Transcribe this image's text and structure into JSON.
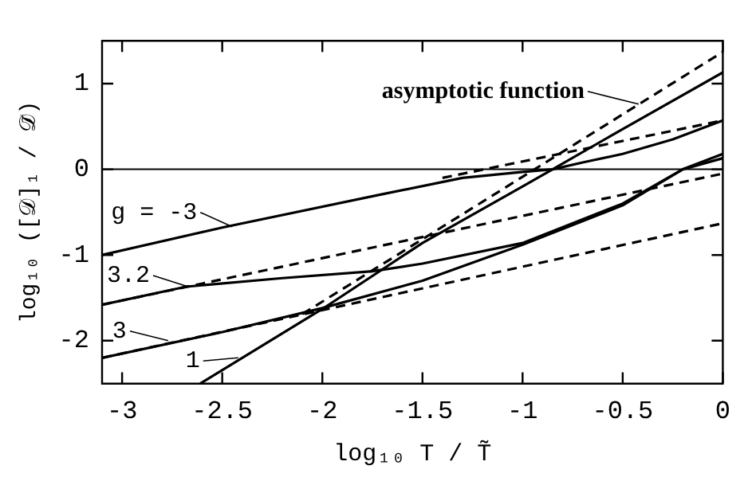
{
  "chart_data": {
    "type": "line",
    "xlabel": "log₁₀ T / T̃",
    "ylabel": "log₁₀ ([𝒟]₁ / 𝒟̃)",
    "xlim": [
      -3.1,
      0
    ],
    "xticks": [
      -3,
      -2.5,
      -2,
      -1.5,
      -1,
      -0.5,
      0
    ],
    "ylim": [
      -2.5,
      1.5
    ],
    "yticks": [
      -2,
      -1,
      0,
      1
    ],
    "grid": false,
    "legend": false,
    "marker": "none",
    "ref_lines": [
      {
        "axis": "y",
        "value": 0,
        "color": "#000000"
      }
    ],
    "series": [
      {
        "color": "#000000",
        "line_style": "solid",
        "x": [
          -3.1,
          -2.5,
          -1.72,
          -1.3,
          -1,
          -0.85,
          -0.7,
          -0.5,
          -0.25,
          0
        ],
        "values": [
          -1,
          -0.68,
          -0.3,
          -0.1,
          -0.03,
          0,
          0.08,
          0.18,
          0.35,
          0.57
        ]
      },
      {
        "color": "#000000",
        "line_style": "dashed",
        "x": [
          -2.1,
          0
        ],
        "values": [
          -1.69,
          1.37
        ]
      },
      {
        "color": "#000000",
        "line_style": "solid",
        "x": [
          -2.61,
          -2,
          -1.5,
          -1,
          -0.85,
          -0.5,
          0
        ],
        "values": [
          -2.5,
          -1.63,
          -0.86,
          -0.2,
          0,
          0.47,
          1.13
        ]
      },
      {
        "color": "#000000",
        "line_style": "dashed",
        "x": [
          -1.4,
          0
        ],
        "values": [
          -0.1,
          0.57
        ]
      },
      {
        "color": "#000000",
        "line_style": "solid",
        "x": [
          -3.1,
          -2.68,
          -2.2,
          -1.75,
          -1.5,
          -1,
          -0.5,
          -0.2,
          0
        ],
        "values": [
          -1.58,
          -1.37,
          -1.27,
          -1.19,
          -1.1,
          -0.86,
          -0.4,
          0,
          0.18
        ]
      },
      {
        "color": "#000000",
        "line_style": "solid",
        "x": [
          -3.1,
          -2.5,
          -2,
          -1.5,
          -1,
          -0.5,
          -0.2,
          0
        ],
        "values": [
          -2.2,
          -1.9,
          -1.62,
          -1.3,
          -0.88,
          -0.42,
          0,
          0.13
        ]
      },
      {
        "color": "#000000",
        "line_style": "dashed",
        "x": [
          -3.1,
          0
        ],
        "values": [
          -1.58,
          -0.05
        ]
      },
      {
        "color": "#000000",
        "line_style": "dashed",
        "x": [
          -3.1,
          0
        ],
        "values": [
          -2.2,
          -0.63
        ]
      }
    ],
    "annotations": [
      {
        "text": "g = -3",
        "x": -2.45,
        "y": -0.67
      },
      {
        "text": "3.2",
        "x": -2.67,
        "y": -1.37
      },
      {
        "text": "3",
        "x": -2.77,
        "y": -2.0
      },
      {
        "text": "1",
        "x": -2.42,
        "y": -2.2
      },
      {
        "text": "asymptotic function",
        "x": -0.42,
        "y": 0.76
      }
    ]
  }
}
